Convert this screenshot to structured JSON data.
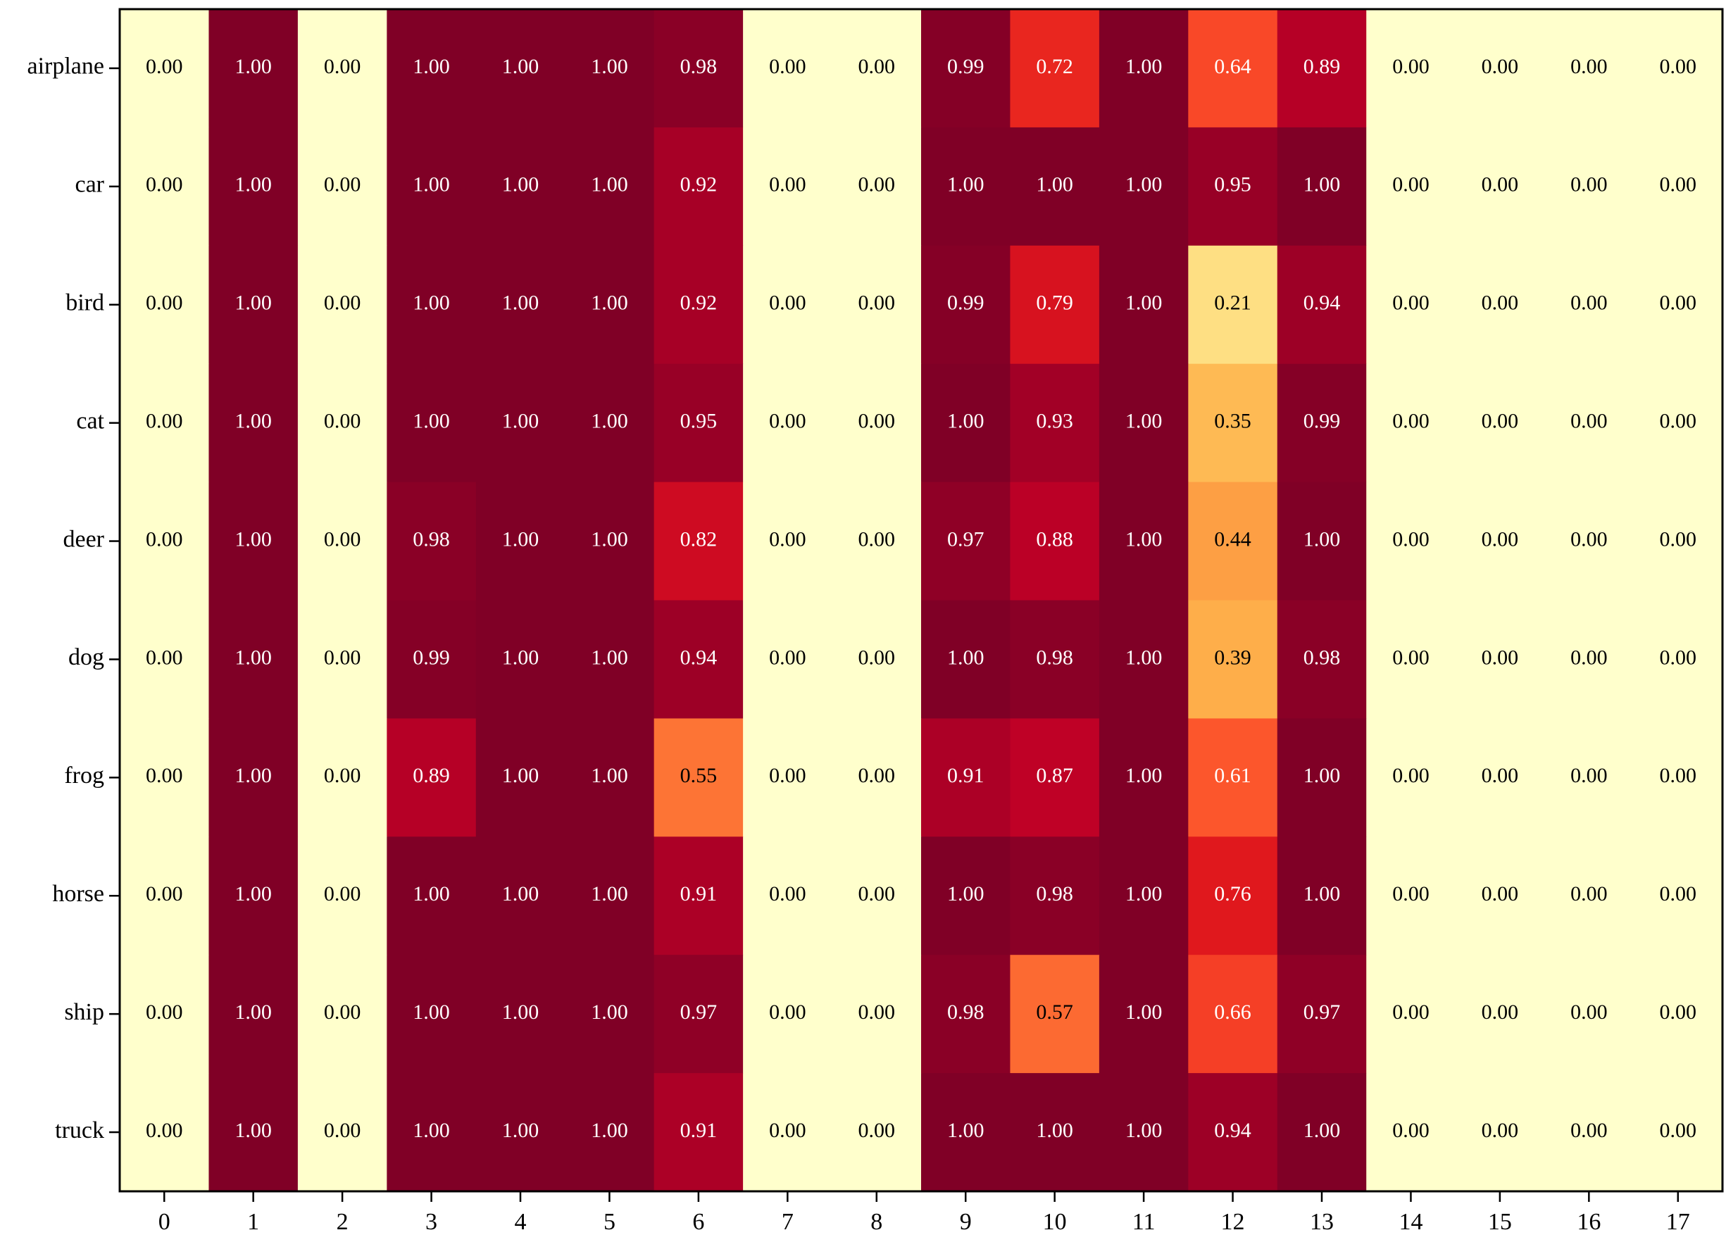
{
  "chart_data": {
    "type": "heatmap",
    "colormap": "YlOrRd",
    "rows": [
      "airplane",
      "car",
      "bird",
      "cat",
      "deer",
      "dog",
      "frog",
      "horse",
      "ship",
      "truck"
    ],
    "columns": [
      0,
      1,
      2,
      3,
      4,
      5,
      6,
      7,
      8,
      9,
      10,
      11,
      12,
      13,
      14,
      15,
      16,
      17
    ],
    "values": [
      [
        0,
        1,
        0,
        1,
        1,
        1,
        0.98,
        0,
        0,
        0.99,
        0.72,
        1,
        0.64,
        0.89,
        0,
        0,
        0,
        0
      ],
      [
        0,
        1,
        0,
        1,
        1,
        1,
        0.92,
        0,
        0,
        1,
        1,
        1,
        0.95,
        1,
        0,
        0,
        0,
        0
      ],
      [
        0,
        1,
        0,
        1,
        1,
        1,
        0.92,
        0,
        0,
        0.99,
        0.79,
        1,
        0.21,
        0.94,
        0,
        0,
        0,
        0
      ],
      [
        0,
        1,
        0,
        1,
        1,
        1,
        0.95,
        0,
        0,
        1,
        0.93,
        1,
        0.35,
        0.99,
        0,
        0,
        0,
        0
      ],
      [
        0,
        1,
        0,
        0.98,
        1,
        1,
        0.82,
        0,
        0,
        0.97,
        0.88,
        1,
        0.44,
        1,
        0,
        0,
        0,
        0
      ],
      [
        0,
        1,
        0,
        0.99,
        1,
        1,
        0.94,
        0,
        0,
        1,
        0.98,
        1,
        0.39,
        0.98,
        0,
        0,
        0,
        0
      ],
      [
        0,
        1,
        0,
        0.89,
        1,
        1,
        0.55,
        0,
        0,
        0.91,
        0.87,
        1,
        0.61,
        1,
        0,
        0,
        0,
        0
      ],
      [
        0,
        1,
        0,
        1,
        1,
        1,
        0.91,
        0,
        0,
        1,
        0.98,
        1,
        0.76,
        1,
        0,
        0,
        0,
        0
      ],
      [
        0,
        1,
        0,
        1,
        1,
        1,
        0.97,
        0,
        0,
        0.98,
        0.57,
        1,
        0.66,
        0.97,
        0,
        0,
        0,
        0
      ],
      [
        0,
        1,
        0,
        1,
        1,
        1,
        0.91,
        0,
        0,
        1,
        1,
        1,
        0.94,
        1,
        0,
        0,
        0,
        0
      ]
    ],
    "value_labels": [
      [
        "0.00",
        "1.00",
        "0.00",
        "1.00",
        "1.00",
        "1.00",
        "0.98",
        "0.00",
        "0.00",
        "0.99",
        "0.72",
        "1.00",
        "0.64",
        "0.89",
        "0.00",
        "0.00",
        "0.00",
        "0.00"
      ],
      [
        "0.00",
        "1.00",
        "0.00",
        "1.00",
        "1.00",
        "1.00",
        "0.92",
        "0.00",
        "0.00",
        "1.00",
        "1.00",
        "1.00",
        "0.95",
        "1.00",
        "0.00",
        "0.00",
        "0.00",
        "0.00"
      ],
      [
        "0.00",
        "1.00",
        "0.00",
        "1.00",
        "1.00",
        "1.00",
        "0.92",
        "0.00",
        "0.00",
        "0.99",
        "0.79",
        "1.00",
        "0.21",
        "0.94",
        "0.00",
        "0.00",
        "0.00",
        "0.00"
      ],
      [
        "0.00",
        "1.00",
        "0.00",
        "1.00",
        "1.00",
        "1.00",
        "0.95",
        "0.00",
        "0.00",
        "1.00",
        "0.93",
        "1.00",
        "0.35",
        "0.99",
        "0.00",
        "0.00",
        "0.00",
        "0.00"
      ],
      [
        "0.00",
        "1.00",
        "0.00",
        "0.98",
        "1.00",
        "1.00",
        "0.82",
        "0.00",
        "0.00",
        "0.97",
        "0.88",
        "1.00",
        "0.44",
        "1.00",
        "0.00",
        "0.00",
        "0.00",
        "0.00"
      ],
      [
        "0.00",
        "1.00",
        "0.00",
        "0.99",
        "1.00",
        "1.00",
        "0.94",
        "0.00",
        "0.00",
        "1.00",
        "0.98",
        "1.00",
        "0.39",
        "0.98",
        "0.00",
        "0.00",
        "0.00",
        "0.00"
      ],
      [
        "0.00",
        "1.00",
        "0.00",
        "0.89",
        "1.00",
        "1.00",
        "0.55",
        "0.00",
        "0.00",
        "0.91",
        "0.87",
        "1.00",
        "0.61",
        "1.00",
        "0.00",
        "0.00",
        "0.00",
        "0.00"
      ],
      [
        "0.00",
        "1.00",
        "0.00",
        "1.00",
        "1.00",
        "1.00",
        "0.91",
        "0.00",
        "0.00",
        "1.00",
        "0.98",
        "1.00",
        "0.76",
        "1.00",
        "0.00",
        "0.00",
        "0.00",
        "0.00"
      ],
      [
        "0.00",
        "1.00",
        "0.00",
        "1.00",
        "1.00",
        "1.00",
        "0.97",
        "0.00",
        "0.00",
        "0.98",
        "0.57",
        "1.00",
        "0.66",
        "0.97",
        "0.00",
        "0.00",
        "0.00",
        "0.00"
      ],
      [
        "0.00",
        "1.00",
        "0.00",
        "1.00",
        "1.00",
        "1.00",
        "0.91",
        "0.00",
        "0.00",
        "1.00",
        "1.00",
        "1.00",
        "0.94",
        "1.00",
        "0.00",
        "0.00",
        "0.00",
        "0.00"
      ]
    ]
  }
}
